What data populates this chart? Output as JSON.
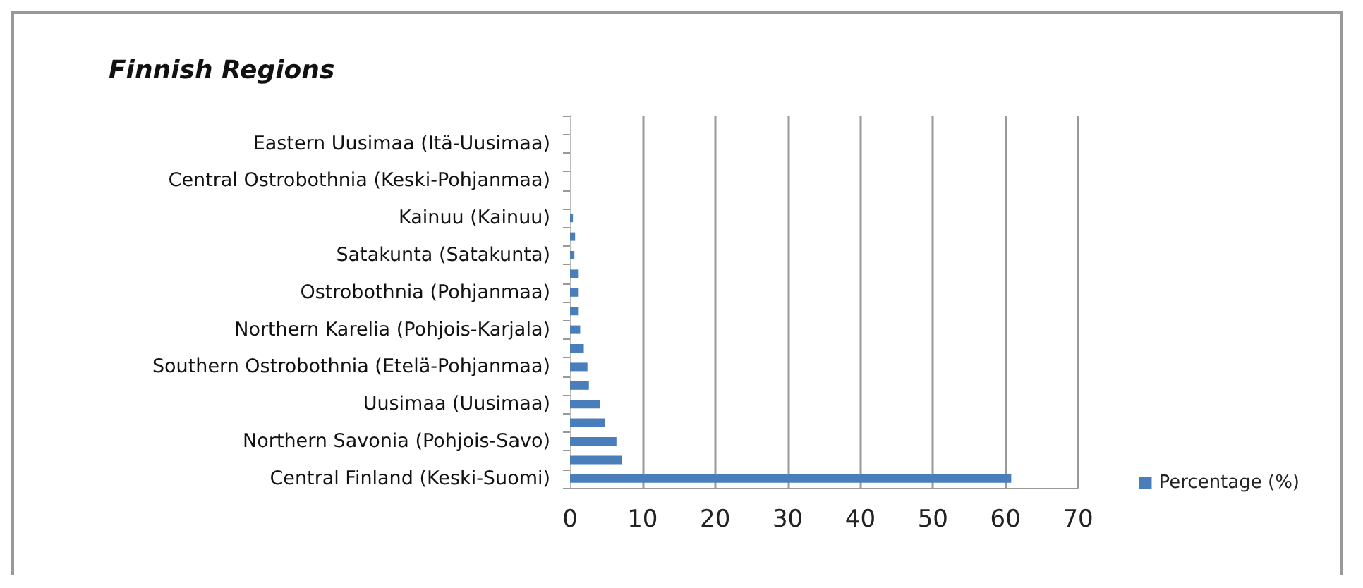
{
  "chart_data": {
    "type": "bar",
    "orientation": "horizontal",
    "title": "Finnish Regions",
    "categories": [
      null,
      "Eastern Uusimaa (Itä-Uusimaa)",
      null,
      "Central Ostrobothnia (Keski-Pohjanmaa)",
      null,
      "Kainuu (Kainuu)",
      null,
      "Satakunta (Satakunta)",
      null,
      "Ostrobothnia (Pohjanmaa)",
      null,
      "Northern Karelia (Pohjois-Karjala)",
      null,
      "Southern Ostrobothnia (Etelä-Pohjanmaa)",
      null,
      "Uusimaa (Uusimaa)",
      null,
      "Northern Savonia (Pohjois-Savo)",
      null,
      "Central Finland (Keski-Suomi)"
    ],
    "series": [
      {
        "name": "Percentage (%)",
        "color": "#4a7ebb",
        "values": [
          0,
          0,
          0,
          0,
          0,
          0.4,
          0.7,
          0.6,
          1.2,
          1.2,
          1.2,
          1.4,
          1.9,
          2.4,
          2.6,
          4.1,
          4.8,
          6.4,
          7.1,
          60.8
        ]
      }
    ],
    "xlim": [
      0,
      70
    ],
    "xticks": [
      0,
      10,
      20,
      30,
      40,
      50,
      60,
      70
    ],
    "grid": "x",
    "legend": "right"
  }
}
